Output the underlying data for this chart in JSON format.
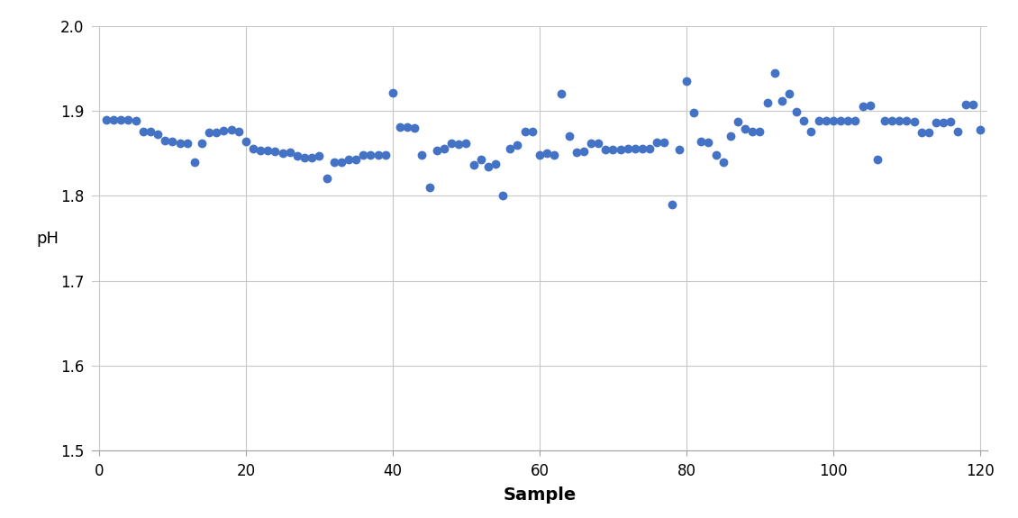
{
  "xlabel": "Sample",
  "ylabel": "pH",
  "xlim": [
    -1,
    121
  ],
  "ylim": [
    1.5,
    2.0
  ],
  "yticks": [
    1.5,
    1.6,
    1.7,
    1.8,
    1.9,
    2.0
  ],
  "xticks": [
    0,
    20,
    40,
    60,
    80,
    100,
    120
  ],
  "dot_color": "#4472C4",
  "dot_size": 50,
  "background_color": "#ffffff",
  "grid_color": "#c8c8c8",
  "x": [
    1,
    2,
    3,
    4,
    5,
    6,
    7,
    8,
    9,
    10,
    11,
    12,
    13,
    14,
    15,
    16,
    17,
    18,
    19,
    20,
    21,
    22,
    23,
    24,
    25,
    26,
    27,
    28,
    29,
    30,
    31,
    32,
    33,
    34,
    35,
    36,
    37,
    38,
    39,
    40,
    41,
    42,
    43,
    44,
    45,
    46,
    47,
    48,
    49,
    50,
    51,
    52,
    53,
    54,
    55,
    56,
    57,
    58,
    59,
    60,
    61,
    62,
    63,
    64,
    65,
    66,
    67,
    68,
    69,
    70,
    71,
    72,
    73,
    74,
    75,
    76,
    77,
    78,
    79,
    80,
    81,
    82,
    83,
    84,
    85,
    86,
    87,
    88,
    89,
    90,
    91,
    92,
    93,
    94,
    95,
    96,
    97,
    98,
    99,
    100,
    101,
    102,
    103,
    104,
    105,
    106,
    107,
    108,
    109,
    110,
    111,
    112,
    113,
    114,
    115,
    116,
    117,
    118,
    119,
    120
  ],
  "y": [
    1.889,
    1.889,
    1.889,
    1.889,
    1.888,
    1.876,
    1.876,
    1.872,
    1.865,
    1.864,
    1.862,
    1.862,
    1.84,
    1.862,
    1.875,
    1.875,
    1.877,
    1.878,
    1.876,
    1.864,
    1.855,
    1.853,
    1.853,
    1.852,
    1.85,
    1.851,
    1.847,
    1.845,
    1.845,
    1.847,
    1.821,
    1.84,
    1.84,
    1.843,
    1.843,
    1.848,
    1.848,
    1.848,
    1.848,
    1.921,
    1.881,
    1.881,
    1.88,
    1.848,
    1.81,
    1.853,
    1.856,
    1.862,
    1.861,
    1.862,
    1.836,
    1.843,
    1.834,
    1.838,
    1.8,
    1.856,
    1.86,
    1.876,
    1.876,
    1.848,
    1.85,
    1.848,
    1.92,
    1.87,
    1.851,
    1.852,
    1.862,
    1.862,
    1.854,
    1.854,
    1.854,
    1.855,
    1.855,
    1.855,
    1.855,
    1.863,
    1.863,
    1.79,
    1.854,
    1.935,
    1.898,
    1.864,
    1.863,
    1.848,
    1.84,
    1.87,
    1.887,
    1.879,
    1.876,
    1.876,
    1.91,
    1.945,
    1.912,
    1.92,
    1.899,
    1.888,
    1.876,
    1.888,
    1.888,
    1.888,
    1.888,
    1.888,
    1.888,
    1.905,
    1.906,
    1.843,
    1.888,
    1.888,
    1.888,
    1.888,
    1.887,
    1.875,
    1.875,
    1.886,
    1.886,
    1.887,
    1.876,
    1.907,
    1.908,
    1.878
  ]
}
